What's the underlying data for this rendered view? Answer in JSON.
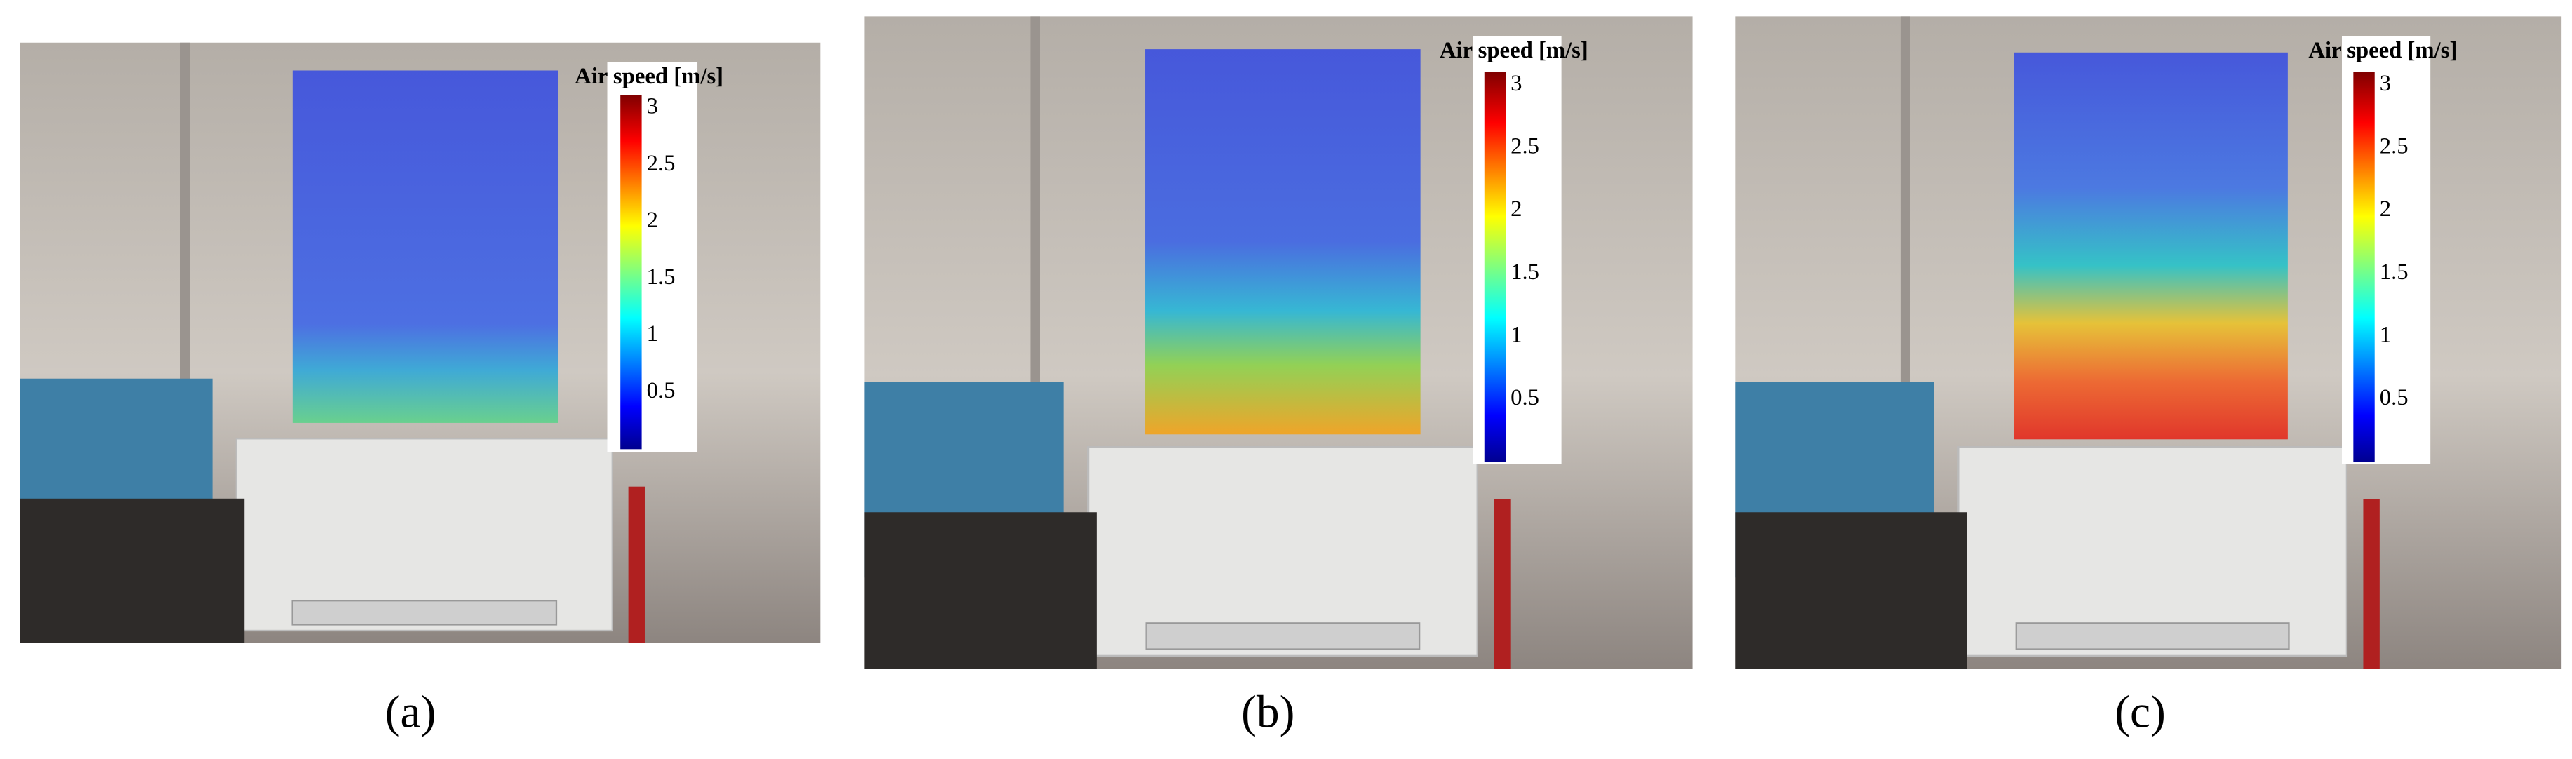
{
  "panels": [
    {
      "label": "(a)",
      "colorbar": {
        "title": "Air speed [m/s]",
        "ticks": [
          3,
          2.5,
          2,
          1.5,
          1,
          0.5
        ]
      }
    },
    {
      "label": "(b)",
      "colorbar": {
        "title": "Air speed [m/s]",
        "ticks": [
          3,
          2.5,
          2,
          1.5,
          1,
          0.5
        ]
      }
    },
    {
      "label": "(c)",
      "colorbar": {
        "title": "Air speed [m/s]",
        "ticks": [
          3,
          2.5,
          2,
          1.5,
          1,
          0.5
        ]
      }
    }
  ]
}
